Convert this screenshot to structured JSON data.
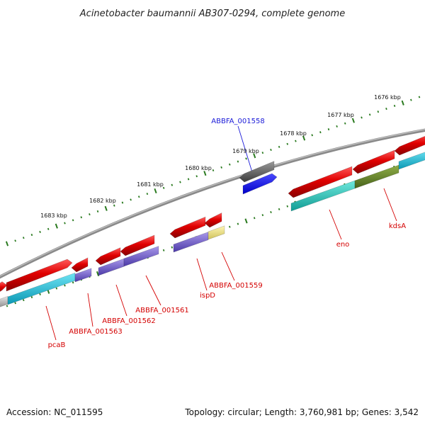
{
  "title": "Acinetobacter baumannii AB307-0294, complete genome",
  "footer": {
    "accession": "Accession: NC_011595",
    "summary": "Topology: circular; Length: 3,760,981 bp; Genes: 3,542"
  },
  "scale_labels": [
    "1676 kbp",
    "1677 kbp",
    "1678 kbp",
    "1679 kbp",
    "1680 kbp",
    "1681 kbp",
    "1682 kbp",
    "1683 kbp"
  ],
  "gene_labels": [
    "ABBFA_001558",
    "kdsA",
    "eno",
    "ABBFA_001559",
    "ispD",
    "ABBFA_001561",
    "ABBFA_001562",
    "ABBFA_001563",
    "pcaB"
  ],
  "colors": {
    "backbone": "#8a8a8a",
    "tick": "#2a7a1f",
    "gene_forward": "#e00000",
    "gene_selected": "#1a1aff",
    "gene_grey": "#6a6a6a",
    "cog_cyan": "#22c4d8",
    "cog_teal": "#2cc8c0",
    "cog_purple": "#7a66cc",
    "cog_olive": "#6a8a28",
    "cog_yellow": "#eee48a",
    "cog_silver": "#c8c8c8",
    "label_default": "#d40000",
    "label_selected": "#1a1ad8"
  }
}
